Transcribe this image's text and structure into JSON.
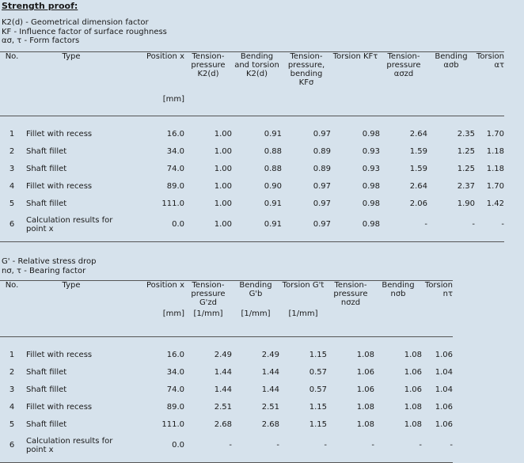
{
  "title": "Strength proof:",
  "legend1": [
    "K2(d) - Geometrical dimension factor",
    "KF - Influence factor of surface roughness",
    "ασ, τ - Form factors"
  ],
  "table1": {
    "headers": [
      "No.",
      "Type",
      "Position x",
      "Tension-pressure K2(d)",
      "Bending and torsion K2(d)",
      "Tension-pressure, bending KFσ",
      "Torsion KFτ",
      "Tension-pressure ασzd",
      "Bending ασb",
      "Torsion ατ"
    ],
    "units": [
      "",
      "",
      "[mm]",
      "",
      "",
      "",
      "",
      "",
      "",
      ""
    ],
    "rows": [
      [
        "1",
        "Fillet with recess",
        "16.0",
        "1.00",
        "0.91",
        "0.97",
        "0.98",
        "2.64",
        "2.35",
        "1.70"
      ],
      [
        "2",
        "Shaft fillet",
        "34.0",
        "1.00",
        "0.88",
        "0.89",
        "0.93",
        "1.59",
        "1.25",
        "1.18"
      ],
      [
        "3",
        "Shaft fillet",
        "74.0",
        "1.00",
        "0.88",
        "0.89",
        "0.93",
        "1.59",
        "1.25",
        "1.18"
      ],
      [
        "4",
        "Fillet with recess",
        "89.0",
        "1.00",
        "0.90",
        "0.97",
        "0.98",
        "2.64",
        "2.37",
        "1.70"
      ],
      [
        "5",
        "Shaft fillet",
        "111.0",
        "1.00",
        "0.91",
        "0.97",
        "0.98",
        "2.06",
        "1.90",
        "1.42"
      ],
      [
        "6",
        "Calculation results for point x",
        "0.0",
        "1.00",
        "0.91",
        "0.97",
        "0.98",
        "-",
        "-",
        "-"
      ]
    ]
  },
  "legend2": [
    "G' - Relative stress drop",
    "nσ, τ - Bearing factor"
  ],
  "table2": {
    "headers": [
      "No.",
      "Type",
      "Position x",
      "Tension-pressure G'zd",
      "Bending G'b",
      "Torsion G't",
      "Tension-pressure nσzd",
      "Bending nσb",
      "Torsion nτ"
    ],
    "units": [
      "",
      "",
      "[mm]",
      "[1/mm]",
      "[1/mm]",
      "[1/mm]",
      "",
      "",
      ""
    ],
    "rows": [
      [
        "1",
        "Fillet with recess",
        "16.0",
        "2.49",
        "2.49",
        "1.15",
        "1.08",
        "1.08",
        "1.06"
      ],
      [
        "2",
        "Shaft fillet",
        "34.0",
        "1.44",
        "1.44",
        "0.57",
        "1.06",
        "1.06",
        "1.04"
      ],
      [
        "3",
        "Shaft fillet",
        "74.0",
        "1.44",
        "1.44",
        "0.57",
        "1.06",
        "1.06",
        "1.04"
      ],
      [
        "4",
        "Fillet with recess",
        "89.0",
        "2.51",
        "2.51",
        "1.15",
        "1.08",
        "1.08",
        "1.06"
      ],
      [
        "5",
        "Shaft fillet",
        "111.0",
        "2.68",
        "2.68",
        "1.15",
        "1.08",
        "1.08",
        "1.06"
      ],
      [
        "6",
        "Calculation results for point x",
        "0.0",
        "-",
        "-",
        "-",
        "-",
        "-",
        "-"
      ]
    ]
  }
}
